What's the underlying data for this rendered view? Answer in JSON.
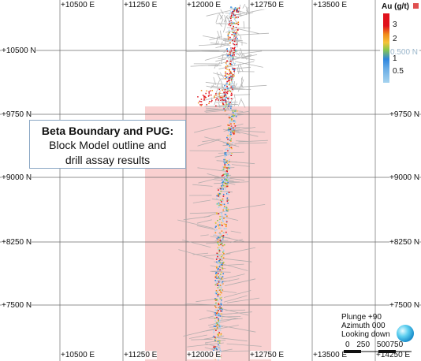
{
  "grid": {
    "easting_labels": [
      "+10500 E",
      "+11250 E",
      "+12000 E",
      "+12750 E",
      "+13500 E"
    ],
    "easting_labels_bottom": [
      "+10500 E",
      "+11250 E",
      "+12000 E",
      "+12750 E",
      "+13500 E",
      "+14250 E"
    ],
    "northing_labels": [
      "+10500 N",
      "+9750 N",
      "+9000 N",
      "+8250 N",
      "+7500 N"
    ]
  },
  "callout": {
    "title": "Beta Boundary and PUG:",
    "line1": "Block Model outline and",
    "line2": "drill assay results"
  },
  "legend": {
    "title": "Au (g/t)",
    "labels": [
      "3",
      "2",
      "0.500 N",
      "1",
      "0.5"
    ],
    "colors": {
      "high": "#e0121c",
      "mid_high": "#f08a1a",
      "mid": "#f5c338",
      "mid_low": "#8cc84a",
      "low": "#2e86de",
      "very_low": "#a6d3ef"
    }
  },
  "orientation": {
    "plunge": "Plunge +90",
    "azimuth": "Azimuth 000",
    "view": "Looking down"
  },
  "scale": {
    "labels": [
      "0",
      "250",
      "500",
      "750"
    ]
  },
  "icons": {
    "legend_close": "close-icon",
    "globe": "globe-icon"
  }
}
